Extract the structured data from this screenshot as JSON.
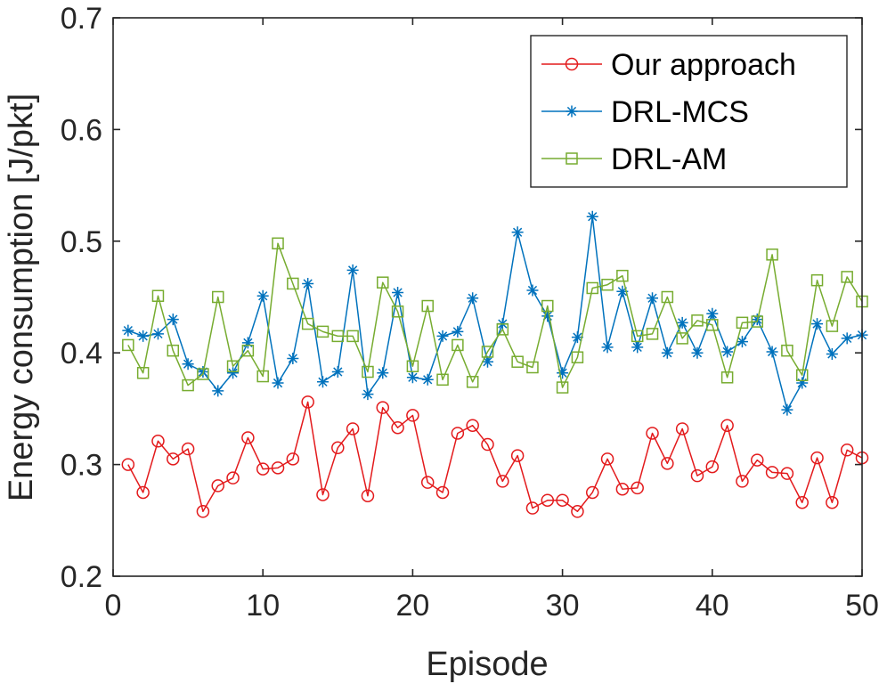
{
  "chart_data": {
    "type": "line",
    "title": "",
    "xlabel": "Episode",
    "ylabel": "Energy consumption [J/pkt]",
    "xlim": [
      0,
      50
    ],
    "ylim": [
      0.2,
      0.7
    ],
    "xticks": [
      0,
      10,
      20,
      30,
      40,
      50
    ],
    "yticks": [
      0.2,
      0.3,
      0.4,
      0.5,
      0.6,
      0.7
    ],
    "xtick_labels": [
      "0",
      "10",
      "20",
      "30",
      "40",
      "50"
    ],
    "ytick_labels": [
      "0.2",
      "0.3",
      "0.4",
      "0.5",
      "0.6",
      "0.7"
    ],
    "grid": false,
    "legend_position": "top-right",
    "x": [
      1,
      2,
      3,
      4,
      5,
      6,
      7,
      8,
      9,
      10,
      11,
      12,
      13,
      14,
      15,
      16,
      17,
      18,
      19,
      20,
      21,
      22,
      23,
      24,
      25,
      26,
      27,
      28,
      29,
      30,
      31,
      32,
      33,
      34,
      35,
      36,
      37,
      38,
      39,
      40,
      41,
      42,
      43,
      44,
      45,
      46,
      47,
      48,
      49,
      50
    ],
    "series": [
      {
        "name": "Our approach",
        "color": "#e31a1c",
        "marker": "circle",
        "values": [
          0.3,
          0.275,
          0.321,
          0.305,
          0.314,
          0.258,
          0.281,
          0.288,
          0.324,
          0.296,
          0.297,
          0.305,
          0.356,
          0.273,
          0.315,
          0.332,
          0.272,
          0.351,
          0.333,
          0.344,
          0.284,
          0.275,
          0.328,
          0.335,
          0.318,
          0.285,
          0.308,
          0.261,
          0.268,
          0.268,
          0.258,
          0.275,
          0.305,
          0.278,
          0.279,
          0.328,
          0.301,
          0.332,
          0.29,
          0.298,
          0.335,
          0.285,
          0.304,
          0.293,
          0.292,
          0.266,
          0.306,
          0.266,
          0.313,
          0.306
        ]
      },
      {
        "name": "DRL-MCS",
        "color": "#0072bd",
        "marker": "asterisk",
        "values": [
          0.42,
          0.415,
          0.417,
          0.43,
          0.39,
          0.383,
          0.366,
          0.382,
          0.409,
          0.451,
          0.373,
          0.395,
          0.462,
          0.374,
          0.383,
          0.474,
          0.363,
          0.382,
          0.454,
          0.378,
          0.376,
          0.415,
          0.419,
          0.449,
          0.392,
          0.426,
          0.508,
          0.456,
          0.433,
          0.382,
          0.414,
          0.522,
          0.405,
          0.455,
          0.405,
          0.449,
          0.4,
          0.427,
          0.4,
          0.435,
          0.401,
          0.41,
          0.43,
          0.401,
          0.349,
          0.373,
          0.426,
          0.399,
          0.413,
          0.416
        ]
      },
      {
        "name": "DRL-AM",
        "color": "#77ac30",
        "marker": "square",
        "values": [
          0.407,
          0.382,
          0.451,
          0.402,
          0.371,
          0.381,
          0.45,
          0.388,
          0.402,
          0.379,
          0.498,
          0.462,
          0.426,
          0.419,
          0.415,
          0.415,
          0.383,
          0.463,
          0.437,
          0.388,
          0.442,
          0.376,
          0.407,
          0.374,
          0.401,
          0.421,
          0.392,
          0.387,
          0.442,
          0.369,
          0.396,
          0.458,
          0.461,
          0.469,
          0.415,
          0.417,
          0.45,
          0.413,
          0.429,
          0.425,
          0.378,
          0.427,
          0.428,
          0.488,
          0.402,
          0.38,
          0.465,
          0.424,
          0.468,
          0.446
        ]
      }
    ]
  }
}
